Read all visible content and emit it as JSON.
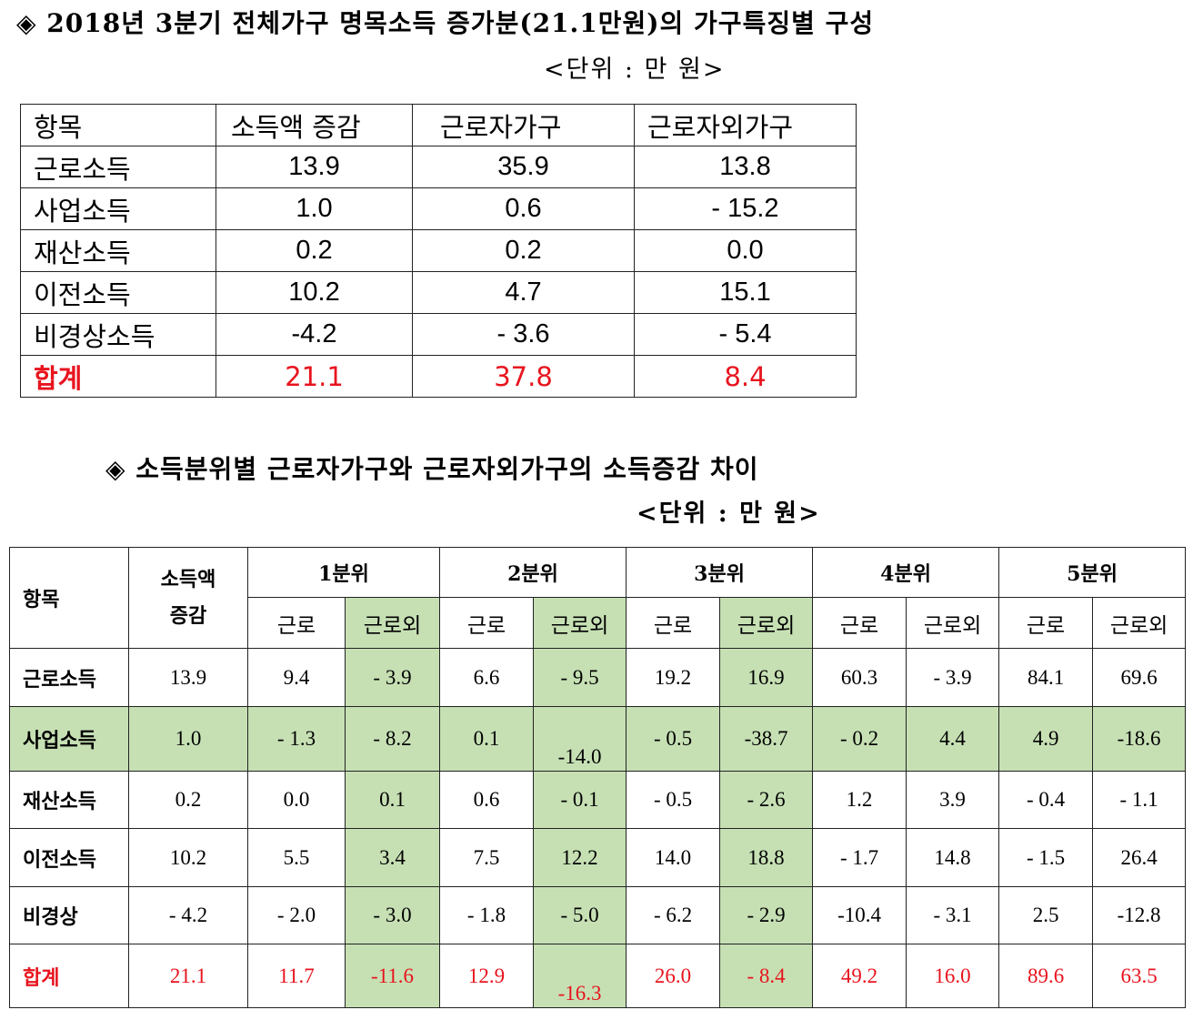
{
  "section1": {
    "title": "◈ 2018년 3분기 전체가구 명목소득 증가분(21.1만원)의 가구특징별 구성",
    "unit": "<단위 : 만 원>",
    "headers": [
      "항목",
      "소득액 증감",
      "근로자가구",
      "근로자외가구"
    ],
    "rows": [
      [
        "근로소득",
        "13.9",
        "35.9",
        "13.8"
      ],
      [
        "사업소득",
        "1.0",
        "0.6",
        "- 15.2"
      ],
      [
        "재산소득",
        "0.2",
        "0.2",
        "0.0"
      ],
      [
        "이전소득",
        "10.2",
        "4.7",
        "15.1"
      ],
      [
        "비경상소득",
        "-4.2",
        "- 3.6",
        "- 5.4"
      ],
      [
        "합계",
        "21.1",
        "37.8",
        "8.4"
      ]
    ]
  },
  "section2": {
    "title": "◈ 소득분위별 근로자가구와 근로자외가구의 소득증감 차이",
    "unit": "<단위 : 만 원>",
    "header_item": "항목",
    "header_change": "소득액 증감",
    "quintiles": [
      "1분위",
      "2분위",
      "3분위",
      "4분위",
      "5분위"
    ],
    "sub_worker": "근로",
    "sub_nonworker": "근로외",
    "rows": [
      [
        "근로소득",
        "13.9",
        "9.4",
        "- 3.9",
        "6.6",
        "- 9.5",
        "19.2",
        "16.9",
        "60.3",
        "- 3.9",
        "84.1",
        "69.6"
      ],
      [
        "사업소득",
        "1.0",
        "- 1.3",
        "- 8.2",
        "0.1",
        "-14.0",
        "- 0.5",
        "-38.7",
        "- 0.2",
        "4.4",
        "4.9",
        "-18.6"
      ],
      [
        "재산소득",
        "0.2",
        "0.0",
        "0.1",
        "0.6",
        "- 0.1",
        "- 0.5",
        "- 2.6",
        "1.2",
        "3.9",
        "- 0.4",
        "- 1.1"
      ],
      [
        "이전소득",
        "10.2",
        "5.5",
        "3.4",
        "7.5",
        "12.2",
        "14.0",
        "18.8",
        "- 1.7",
        "14.8",
        "- 1.5",
        "26.4"
      ],
      [
        "비경상",
        "- 4.2",
        "- 2.0",
        "- 3.0",
        "- 1.8",
        "- 5.0",
        "- 6.2",
        "- 2.9",
        "-10.4",
        "- 3.1",
        "2.5",
        "-12.8"
      ],
      [
        "합계",
        "21.1",
        "11.7",
        "-11.6",
        "12.9",
        "-16.3",
        "26.0",
        "- 8.4",
        "49.2",
        "16.0",
        "89.6",
        "63.5"
      ]
    ],
    "colors": {
      "highlight_green": "#c6e0b4",
      "total_red": "#e8141e"
    }
  }
}
